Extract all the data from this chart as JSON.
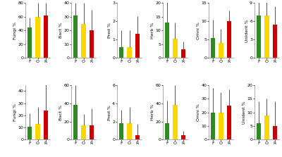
{
  "row1": {
    "panels": [
      {
        "ylabel": "Fungi %",
        "ylim": [
          0,
          80
        ],
        "yticks": [
          0,
          20,
          40,
          60,
          80
        ],
        "values": [
          44,
          60,
          62
        ],
        "errors": [
          15,
          20,
          18
        ],
        "colors": [
          "#2E8B22",
          "#FFD700",
          "#CC0000"
        ]
      },
      {
        "ylabel": "Bact %",
        "ylim": [
          0,
          40
        ],
        "yticks": [
          0,
          10,
          20,
          30,
          40
        ],
        "values": [
          31,
          25,
          20
        ],
        "errors": [
          9,
          15,
          15
        ],
        "colors": [
          "#2E8B22",
          "#FFD700",
          "#CC0000"
        ]
      },
      {
        "ylabel": "Pred %",
        "ylim": [
          0,
          3
        ],
        "yticks": [
          0,
          1,
          2,
          3
        ],
        "values": [
          0.6,
          0.6,
          1.3
        ],
        "errors": [
          0.9,
          0.9,
          1.0
        ],
        "colors": [
          "#2E8B22",
          "#FFD700",
          "#CC0000"
        ]
      },
      {
        "ylabel": "Herb %",
        "ylim": [
          0,
          20
        ],
        "yticks": [
          0,
          5,
          10,
          15,
          20
        ],
        "values": [
          13,
          7,
          3
        ],
        "errors": [
          9,
          6,
          3
        ],
        "colors": [
          "#2E8B22",
          "#FFD700",
          "#CC0000"
        ]
      },
      {
        "ylabel": "Omni %",
        "ylim": [
          0,
          15
        ],
        "yticks": [
          0,
          5,
          10,
          15
        ],
        "values": [
          5.5,
          4,
          10
        ],
        "errors": [
          5,
          4,
          3
        ],
        "colors": [
          "#2E8B22",
          "#FFD700",
          "#CC0000"
        ]
      },
      {
        "ylabel": "Unident %",
        "ylim": [
          0,
          9
        ],
        "yticks": [
          0,
          3,
          6,
          9
        ],
        "values": [
          7,
          7,
          5.5
        ],
        "errors": [
          2.5,
          2.5,
          3.0
        ],
        "colors": [
          "#2E8B22",
          "#FFD700",
          "#CC0000"
        ]
      }
    ]
  },
  "row2": {
    "panels": [
      {
        "ylabel": "Fungi %",
        "ylim": [
          0,
          45
        ],
        "yticks": [
          0,
          10,
          20,
          30,
          40
        ],
        "values": [
          11,
          13,
          24
        ],
        "errors": [
          11,
          14,
          22
        ],
        "colors": [
          "#2E8B22",
          "#FFD700",
          "#CC0000"
        ]
      },
      {
        "ylabel": "Bact %",
        "ylim": [
          0,
          60
        ],
        "yticks": [
          0,
          20,
          40,
          60
        ],
        "values": [
          38,
          16,
          16
        ],
        "errors": [
          22,
          12,
          18
        ],
        "colors": [
          "#2E8B22",
          "#FFD700",
          "#CC0000"
        ]
      },
      {
        "ylabel": "Pred %",
        "ylim": [
          0,
          6
        ],
        "yticks": [
          0,
          2,
          4,
          6
        ],
        "values": [
          1.8,
          1.8,
          0.5
        ],
        "errors": [
          1.5,
          1.8,
          1.2
        ],
        "colors": [
          "#2E8B22",
          "#FFD700",
          "#CC0000"
        ]
      },
      {
        "ylabel": "Herb %",
        "ylim": [
          0,
          60
        ],
        "yticks": [
          0,
          20,
          40,
          60
        ],
        "values": [
          18,
          38,
          5
        ],
        "errors": [
          25,
          22,
          5
        ],
        "colors": [
          "#2E8B22",
          "#FFD700",
          "#CC0000"
        ]
      },
      {
        "ylabel": "Omni %",
        "ylim": [
          0,
          40
        ],
        "yticks": [
          0,
          10,
          20,
          30,
          40
        ],
        "values": [
          20,
          20,
          25
        ],
        "errors": [
          18,
          15,
          12
        ],
        "colors": [
          "#2E8B22",
          "#FFD700",
          "#CC0000"
        ]
      },
      {
        "ylabel": "Unident %",
        "ylim": [
          0,
          20
        ],
        "yticks": [
          0,
          5,
          10,
          15,
          20
        ],
        "values": [
          6,
          9,
          5
        ],
        "errors": [
          8,
          6,
          9
        ],
        "colors": [
          "#2E8B22",
          "#FFD700",
          "#CC0000"
        ]
      }
    ]
  },
  "xlabel_labels": [
    "F",
    "O",
    "R"
  ],
  "bar_width": 0.55,
  "background_color": "#ffffff"
}
